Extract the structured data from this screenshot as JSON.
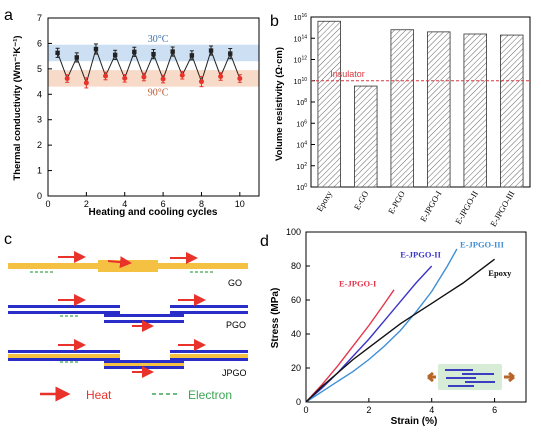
{
  "panels": {
    "a": "a",
    "b": "b",
    "c": "c",
    "d": "d"
  },
  "colors": {
    "heat": "#e8322a",
    "electron": "#3aa655",
    "blue_layer": "#2a2ec8",
    "yellow_layer": "#f5c143",
    "band_30": "#bcd6ef",
    "band_90": "#f6cdb6",
    "insulator": "#d8393f",
    "series_EJPGO_I": "#e4364d",
    "series_EJPGO_II": "#3b35c9",
    "series_EJPGO_III": "#3f8fd6",
    "series_Epoxy": "#111111"
  },
  "chart_data": [
    {
      "panel": "a",
      "type": "line",
      "xlabel": "Heating and cooling cycles",
      "ylabel": "Thermal conductivity (Wm⁻¹K⁻¹)",
      "xlim": [
        0,
        11
      ],
      "ylim": [
        0,
        7
      ],
      "xticks": [
        0,
        2,
        4,
        6,
        8,
        10
      ],
      "yticks": [
        0,
        1,
        2,
        3,
        4,
        5,
        6,
        7
      ],
      "annotations": [
        "30°C",
        "90°C"
      ],
      "bands": [
        {
          "label": "30°C",
          "range": [
            5.3,
            5.95
          ]
        },
        {
          "label": "90°C",
          "range": [
            4.3,
            4.95
          ]
        }
      ],
      "series": [
        {
          "name": "30°C",
          "x": [
            0.5,
            1.5,
            2.5,
            3.5,
            4.5,
            5.5,
            6.5,
            7.5,
            8.5,
            9.5
          ],
          "values": [
            5.63,
            5.45,
            5.78,
            5.55,
            5.67,
            5.58,
            5.68,
            5.53,
            5.72,
            5.6
          ],
          "err": [
            0.18,
            0.18,
            0.2,
            0.18,
            0.18,
            0.18,
            0.18,
            0.18,
            0.18,
            0.2
          ]
        },
        {
          "name": "90°C",
          "x": [
            1,
            2,
            3,
            4,
            5,
            6,
            7,
            8,
            9,
            10
          ],
          "values": [
            4.62,
            4.45,
            4.72,
            4.63,
            4.68,
            4.6,
            4.75,
            4.5,
            4.7,
            4.62
          ],
          "err": [
            0.15,
            0.2,
            0.15,
            0.15,
            0.15,
            0.15,
            0.15,
            0.2,
            0.15,
            0.15
          ]
        },
        {
          "name": "",
          "x": [
            0.5,
            1.0,
            1.5,
            2.0,
            2.5,
            3.0,
            3.5,
            4.0,
            4.5,
            5.0,
            5.5,
            6.0,
            6.5,
            7.0,
            7.5,
            8.0,
            8.5,
            9.0,
            9.5,
            10.0
          ],
          "values": [
            5.63,
            4.62,
            5.45,
            4.45,
            5.78,
            4.72,
            5.55,
            4.63,
            5.67,
            4.68,
            5.58,
            4.6,
            5.68,
            4.75,
            5.53,
            4.5,
            5.72,
            4.7,
            5.6,
            4.62
          ]
        }
      ]
    },
    {
      "panel": "b",
      "type": "bar",
      "ylabel": "Volume resistivity (Ω·cm)",
      "scale": "log",
      "ylim_exp": [
        0,
        16
      ],
      "ytick_exps": [
        0,
        2,
        4,
        6,
        8,
        10,
        12,
        14,
        16
      ],
      "categories": [
        "Epoxy",
        "E-GO",
        "E-PGO",
        "E-JPGO-I",
        "E-JPGO-II",
        "E-JPGO-III"
      ],
      "log10_values": [
        15.6,
        9.5,
        14.8,
        14.6,
        14.4,
        14.3
      ],
      "reference": {
        "label": "Insulator",
        "log10_value": 10
      }
    },
    {
      "panel": "d",
      "type": "line",
      "xlabel": "Strain (%)",
      "ylabel": "Stress (MPa)",
      "xlim": [
        0,
        7
      ],
      "ylim": [
        0,
        100
      ],
      "xticks": [
        0,
        2,
        4,
        6
      ],
      "yticks": [
        0,
        20,
        40,
        60,
        80,
        100
      ],
      "series": [
        {
          "name": "E-JPGO-I",
          "x": [
            0,
            0.5,
            1,
            1.5,
            2,
            2.5,
            2.8
          ],
          "values": [
            0,
            10,
            21,
            33,
            45,
            58,
            66
          ]
        },
        {
          "name": "E-JPGO-II",
          "x": [
            0,
            0.5,
            1,
            1.5,
            2,
            2.5,
            3,
            3.5,
            4.0
          ],
          "values": [
            0,
            8,
            17,
            27,
            37,
            48,
            59,
            70,
            80
          ]
        },
        {
          "name": "E-JPGO-III",
          "x": [
            0,
            0.5,
            1,
            1.5,
            2,
            2.5,
            3,
            3.5,
            4,
            4.5,
            4.8
          ],
          "values": [
            0,
            6,
            12,
            18,
            25,
            33,
            42,
            53,
            65,
            80,
            90
          ]
        },
        {
          "name": "Epoxy",
          "x": [
            0,
            0.5,
            1,
            1.5,
            2,
            2.5,
            3,
            3.5,
            4,
            4.5,
            5,
            5.5,
            6.0
          ],
          "values": [
            0,
            9,
            17,
            25,
            32,
            39,
            46,
            52,
            58,
            64,
            70,
            77,
            84
          ]
        }
      ]
    }
  ],
  "schematic": {
    "rows": [
      "GO",
      "PGO",
      "JPGO"
    ],
    "legend": {
      "heat": "Heat",
      "electron": "Electron"
    }
  }
}
